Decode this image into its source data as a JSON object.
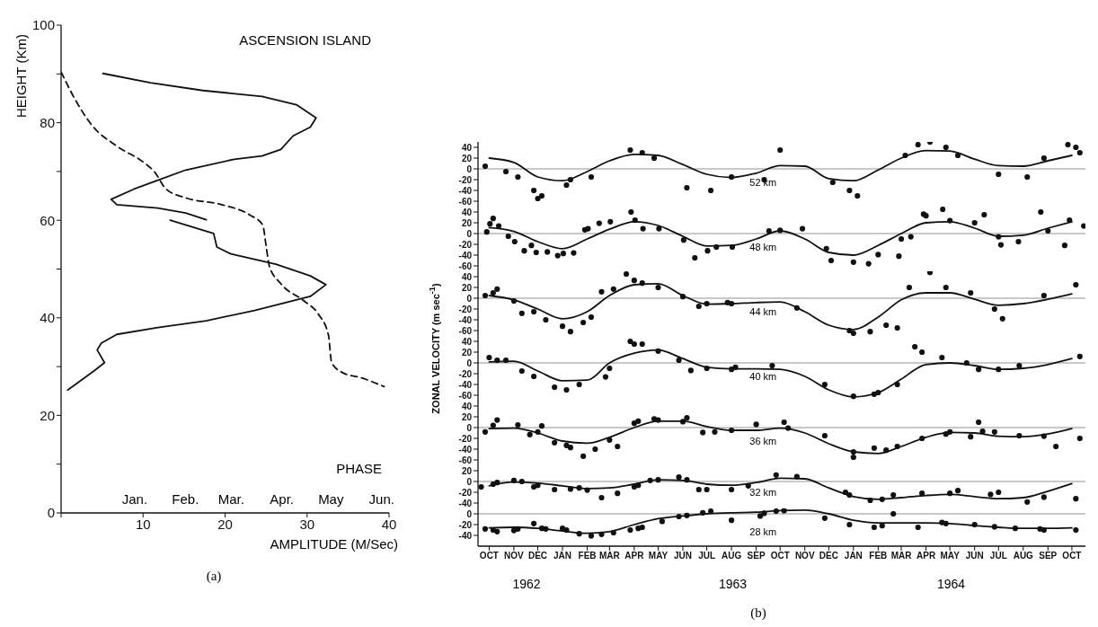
{
  "chart_data": [
    {
      "type": "line",
      "title": "ASCENSION ISLAND",
      "xlabel": "AMPLITUDE (M/Sec)",
      "ylabel": "HEIGHT (Km)",
      "x2label": "PHASE",
      "xlim": [
        0,
        40
      ],
      "xticks": [
        {
          "value": 0,
          "label": null
        },
        10,
        20,
        30,
        40
      ],
      "x2lim": [
        "1962-12-01",
        "1963-06-19"
      ],
      "x2ticks": [
        {
          "value": "1963-01-15",
          "label": "Jan."
        },
        {
          "value": "1963-02-15",
          "label": "Feb."
        },
        {
          "value": "1963-03-15",
          "label": "Mar."
        },
        {
          "value": "1963-04-15",
          "label": "Apr."
        },
        {
          "value": "1963-05-15",
          "label": "May"
        },
        {
          "value": "1963-06-15",
          "label": "Jun."
        }
      ],
      "ylim": [
        0,
        100
      ],
      "yticks": [
        0,
        {
          "value": 10,
          "label": null
        },
        20,
        {
          "value": 30,
          "label": null
        },
        40,
        {
          "value": 50,
          "label": null
        },
        60,
        {
          "value": 70,
          "label": null
        },
        80,
        {
          "value": 90,
          "label": null
        },
        100
      ],
      "series": [
        {
          "color": "#111111",
          "x": [
            5.1,
            10.9,
            17.3,
            24.5,
            28.7,
            31.1,
            30.4,
            28.3,
            26.8,
            24.5,
            21.1,
            15.2,
            11.8,
            8.9,
            6.1,
            6.8,
            11.8,
            15.2,
            17.7,
            null,
            13.3,
            18.6,
            19,
            20.7,
            26.2,
            30.4,
            32.3,
            30.4,
            23.6,
            17.7,
            11.8,
            6.8,
            4.9,
            4.4,
            5.3,
            4,
            0.8
          ],
          "values": [
            90.1,
            88.2,
            86.6,
            85.4,
            83.7,
            81,
            79.1,
            77.3,
            74.5,
            73.2,
            72.5,
            70.3,
            68.2,
            66.4,
            64.3,
            63.2,
            62.5,
            61.5,
            60.1,
            null,
            60,
            57.3,
            54.5,
            53.1,
            51,
            48.6,
            46.8,
            44.4,
            41.5,
            39.4,
            38,
            36.6,
            34.8,
            33.4,
            30.8,
            29.1,
            25.2
          ]
        },
        {
          "color": "#111111",
          "axis": "x2",
          "line_style": "dashed",
          "x": [
            "1962-12-01",
            "1962-12-09",
            "1962-12-20",
            "1963-01-04",
            "1963-01-21",
            "1963-01-27",
            "1963-02-03",
            "1963-02-15",
            "1963-03-09",
            "1963-03-26",
            "1963-04-03",
            "1963-04-05",
            "1963-04-07",
            "1963-04-14",
            "1963-04-28",
            "1963-05-07",
            "1963-05-13",
            "1963-05-15",
            "1963-05-22",
            "1963-06-02",
            "1963-06-16"
          ],
          "values": [
            90.4,
            85.1,
            79.4,
            75.2,
            71.7,
            69.9,
            66.4,
            64.6,
            63.2,
            61.1,
            59,
            54.8,
            50.6,
            47,
            43.5,
            40.7,
            36.5,
            30.8,
            28.7,
            27.7,
            25.9
          ]
        }
      ],
      "annotations": [
        "(a)"
      ]
    },
    {
      "type": "line",
      "xlim": [
        "1962-10-01",
        "1964-11-01"
      ],
      "ylim": [
        -70,
        50
      ],
      "yticks": [
        40,
        20,
        0,
        -20,
        -40,
        -60
      ],
      "tick_labels": "y",
      "ref_lines": [
        {
          "axis": "y",
          "value": 0,
          "color": "#777777"
        }
      ],
      "x": [
        "1962-10-15",
        "1962-11-15",
        "1962-12-15",
        "1963-01-15",
        "1963-02-15",
        "1963-03-15",
        "1963-04-15",
        "1963-05-15",
        "1963-06-15",
        "1963-07-15",
        "1963-08-15",
        "1963-09-15",
        "1963-10-15",
        "1963-11-15",
        "1963-12-15",
        "1964-01-15",
        "1964-02-15",
        "1964-03-15",
        "1964-04-15",
        "1964-05-15",
        "1964-06-15",
        "1964-07-15",
        "1964-08-15",
        "1964-09-15",
        "1964-10-15"
      ],
      "series": [
        {
          "color": "#111111",
          "values": [
            20,
            12,
            -15,
            -22,
            -5,
            15,
            27,
            25,
            8,
            -10,
            -16,
            -8,
            6,
            5,
            -18,
            -22,
            -2,
            20,
            34,
            33,
            18,
            6,
            5,
            15,
            25
          ]
        },
        {
          "type": "scatter",
          "marker": "circle",
          "color": "#111111",
          "x": [
            "1962-10-10",
            "1962-11-05",
            "1962-11-20",
            "1962-12-15",
            "1962-12-20",
            "1963-01-20",
            "1963-02-20",
            "1963-04-10",
            "1963-05-10",
            "1963-07-20",
            "1963-09-25",
            "1963-10-15",
            "1963-12-20",
            "1964-01-20",
            "1964-03-20",
            "1964-04-20",
            "1964-05-10",
            "1964-07-15",
            "1964-08-20",
            "1964-10-10",
            "1964-10-25"
          ],
          "values": [
            5,
            -5,
            -15,
            -55,
            -50,
            -30,
            -15,
            35,
            20,
            -40,
            -20,
            35,
            -25,
            -50,
            25,
            50,
            40,
            -10,
            -15,
            45,
            30
          ]
        },
        {
          "type": "scatter",
          "marker": "circle",
          "color": "#111111",
          "x": [
            "1962-12-10",
            "1963-01-25",
            "1963-04-25",
            "1963-06-20",
            "1963-08-15",
            "1964-01-10",
            "1964-04-05",
            "1964-05-25",
            "1964-09-10",
            "1964-10-20"
          ],
          "values": [
            -40,
            -20,
            30,
            -35,
            -15,
            -40,
            45,
            25,
            20,
            40
          ]
        }
      ],
      "annotations": [
        "52 km"
      ]
    },
    {
      "type": "line",
      "xlim": [
        "1962-10-01",
        "1964-11-01"
      ],
      "ylim": [
        -70,
        50
      ],
      "yticks": [
        40,
        20,
        0,
        -20,
        -40,
        -60
      ],
      "tick_labels": "y",
      "ref_lines": [
        {
          "axis": "y",
          "value": 0,
          "color": "#777777"
        }
      ],
      "x": [
        "1962-10-15",
        "1962-11-15",
        "1962-12-15",
        "1963-01-15",
        "1963-02-15",
        "1963-03-15",
        "1963-04-15",
        "1963-05-15",
        "1963-06-15",
        "1963-07-15",
        "1963-08-15",
        "1963-09-15",
        "1963-10-15",
        "1963-11-15",
        "1963-12-15",
        "1964-01-15",
        "1964-02-15",
        "1964-03-15",
        "1964-04-15",
        "1964-05-15",
        "1964-06-15",
        "1964-07-15",
        "1964-08-15",
        "1964-09-15",
        "1964-10-15"
      ],
      "series": [
        {
          "color": "#111111",
          "values": [
            11,
            4,
            -15,
            -28,
            -10,
            8,
            22,
            15,
            -5,
            -23,
            -22,
            -10,
            5,
            -10,
            -35,
            -40,
            -22,
            0,
            20,
            22,
            10,
            -5,
            -3,
            10,
            22
          ]
        },
        {
          "type": "scatter",
          "marker": "circle",
          "color": "#111111",
          "x": [
            "1962-10-12",
            "1962-10-20",
            "1962-10-27",
            "1962-11-08",
            "1962-11-28",
            "1962-12-07",
            "1962-12-13",
            "1962-12-27",
            "1963-01-09",
            "1963-01-29",
            "1963-02-12",
            "1963-03-02",
            "1963-04-11",
            "1963-04-26",
            "1963-06-30",
            "1963-07-27",
            "1963-10-01",
            "1963-11-12",
            "1963-12-12",
            "1963-12-18",
            "1964-02-03",
            "1964-03-12",
            "1964-03-27",
            "1964-04-12",
            "1964-05-06",
            "1964-06-27",
            "1964-07-18",
            "1964-08-09",
            "1964-09-06",
            "1964-10-06",
            "1964-10-30"
          ],
          "values": [
            3,
            28,
            14,
            -5,
            -32,
            -22,
            -35,
            -34,
            -41,
            -36,
            7,
            19,
            40,
            9,
            -45,
            -25,
            5,
            9,
            -28,
            -50,
            -56,
            -42,
            -6,
            36,
            45,
            35,
            -21,
            -15,
            40,
            -22,
            14
          ]
        },
        {
          "type": "scatter",
          "marker": "circle",
          "color": "#111111",
          "x": [
            "1962-10-16",
            "1962-11-16",
            "1963-01-16",
            "1963-02-16",
            "1963-03-16",
            "1963-04-16",
            "1963-05-16",
            "1963-06-16",
            "1963-07-16",
            "1963-08-16",
            "1963-10-15",
            "1964-01-15",
            "1964-02-15",
            "1964-03-15",
            "1964-04-15",
            "1964-05-15",
            "1964-06-15",
            "1964-07-15",
            "1964-09-15",
            "1964-10-12"
          ],
          "values": [
            18,
            -15,
            -37,
            9,
            22,
            25,
            9,
            -12,
            -32,
            -25,
            6,
            -53,
            -39,
            -10,
            33,
            24,
            20,
            -6,
            5,
            25
          ]
        }
      ],
      "annotations": [
        "48 km"
      ]
    },
    {
      "type": "line",
      "xlim": [
        "1962-10-01",
        "1964-11-01"
      ],
      "ylim": [
        -70,
        50
      ],
      "yticks": [
        40,
        20,
        0,
        -20,
        -40,
        -60
      ],
      "tick_labels": "y",
      "ref_lines": [
        {
          "axis": "y",
          "value": 0,
          "color": "#777777"
        }
      ],
      "x": [
        "1962-10-15",
        "1962-11-15",
        "1962-12-15",
        "1963-01-15",
        "1963-02-15",
        "1963-03-15",
        "1963-04-15",
        "1963-05-15",
        "1963-06-15",
        "1963-07-15",
        "1963-08-15",
        "1963-09-15",
        "1963-10-15",
        "1963-11-15",
        "1963-12-15",
        "1964-01-15",
        "1964-02-15",
        "1964-03-15",
        "1964-04-15",
        "1964-05-15",
        "1964-06-15",
        "1964-07-15",
        "1964-08-15",
        "1964-09-15",
        "1964-10-15"
      ],
      "series": [
        {
          "color": "#111111",
          "values": [
            5,
            -3,
            -20,
            -38,
            -25,
            5,
            25,
            27,
            5,
            -11,
            -10,
            -8,
            -7,
            -25,
            -50,
            -58,
            -35,
            -3,
            10,
            10,
            -2,
            -13,
            -10,
            -2,
            8
          ]
        },
        {
          "type": "scatter",
          "marker": "circle",
          "color": "#111111",
          "x": [
            "1962-10-10",
            "1962-10-25",
            "1962-11-15",
            "1962-12-10",
            "1962-12-25",
            "1963-01-15",
            "1963-02-10",
            "1963-03-05",
            "1963-04-05",
            "1963-04-25",
            "1963-07-05",
            "1963-08-10",
            "1963-11-05",
            "1964-01-15",
            "1964-02-05",
            "1964-03-10",
            "1964-03-25",
            "1964-04-20",
            "1964-06-10",
            "1964-07-20",
            "1964-09-10",
            "1964-10-20"
          ],
          "values": [
            5,
            17,
            -5,
            -25,
            -40,
            -52,
            -45,
            12,
            45,
            28,
            -15,
            -8,
            -18,
            -65,
            -62,
            -55,
            20,
            48,
            10,
            -38,
            5,
            25
          ]
        },
        {
          "type": "scatter",
          "marker": "circle",
          "color": "#111111",
          "x": [
            "1962-10-20",
            "1962-11-25",
            "1963-01-25",
            "1963-02-20",
            "1963-03-20",
            "1963-04-15",
            "1963-05-15",
            "1963-06-15",
            "1963-07-15",
            "1963-08-15",
            "1964-01-10",
            "1964-02-25",
            "1964-05-10",
            "1964-07-10"
          ],
          "values": [
            10,
            -28,
            -62,
            -35,
            17,
            33,
            20,
            3,
            -10,
            -10,
            -60,
            -50,
            20,
            -20
          ]
        }
      ],
      "annotations": [
        "44 km"
      ]
    },
    {
      "type": "line",
      "ylabel": "ZONAL VELOCITY (m sec$^{-1}$)",
      "xlim": [
        "1962-10-01",
        "1964-11-01"
      ],
      "ylim": [
        -70,
        50
      ],
      "yticks": [
        40,
        20,
        0,
        -20,
        -40,
        -60
      ],
      "tick_labels": "y",
      "ref_lines": [
        {
          "axis": "y",
          "value": 0,
          "color": "#777777"
        }
      ],
      "x": [
        "1962-10-15",
        "1962-11-15",
        "1962-12-15",
        "1963-01-15",
        "1963-02-15",
        "1963-03-15",
        "1963-04-15",
        "1963-05-15",
        "1963-06-15",
        "1963-07-15",
        "1963-08-15",
        "1963-09-15",
        "1963-10-15",
        "1963-11-15",
        "1963-12-15",
        "1964-01-15",
        "1964-02-15",
        "1964-03-15",
        "1964-04-15",
        "1964-05-15",
        "1964-06-15",
        "1964-07-15",
        "1964-08-15",
        "1964-09-15",
        "1964-10-15"
      ],
      "series": [
        {
          "color": "#111111",
          "values": [
            2,
            3,
            -15,
            -33,
            -32,
            0,
            18,
            24,
            8,
            -8,
            -11,
            -11,
            -12,
            -25,
            -50,
            -63,
            -55,
            -30,
            -3,
            0,
            -5,
            -12,
            -10,
            -3,
            8
          ]
        },
        {
          "type": "scatter",
          "marker": "circle",
          "color": "#111111",
          "x": [
            "1962-10-15",
            "1962-11-05",
            "1962-11-25",
            "1962-12-10",
            "1963-01-05",
            "1963-02-05",
            "1963-03-10",
            "1963-04-10",
            "1963-04-25",
            "1963-06-25",
            "1963-08-20",
            "1963-10-05",
            "1963-12-10",
            "1964-01-15",
            "1964-02-10",
            "1964-03-10",
            "1964-04-10",
            "1964-05-05",
            "1964-06-20",
            "1964-08-10",
            "1964-10-25"
          ],
          "values": [
            10,
            5,
            -15,
            -25,
            -45,
            -40,
            -26,
            40,
            35,
            -14,
            -8,
            -5,
            -40,
            -62,
            -58,
            -40,
            20,
            10,
            -12,
            -5,
            12
          ]
        },
        {
          "type": "scatter",
          "marker": "circle",
          "color": "#111111",
          "x": [
            "1962-10-25",
            "1963-01-20",
            "1963-03-15",
            "1963-04-15",
            "1963-05-15",
            "1963-06-10",
            "1963-07-15",
            "1963-08-15",
            "1964-02-15",
            "1964-04-01",
            "1964-06-05",
            "1964-07-15"
          ],
          "values": [
            5,
            -50,
            -10,
            35,
            22,
            5,
            -10,
            -12,
            -55,
            30,
            0,
            -12
          ]
        }
      ],
      "annotations": [
        "40 km"
      ]
    },
    {
      "type": "line",
      "xlim": [
        "1962-10-01",
        "1964-11-01"
      ],
      "ylim": [
        -70,
        50
      ],
      "yticks": [
        40,
        20,
        0,
        -20,
        -40,
        -60
      ],
      "tick_labels": "y",
      "ref_lines": [
        {
          "axis": "y",
          "value": 0,
          "color": "#777777"
        }
      ],
      "x": [
        "1962-10-15",
        "1962-11-15",
        "1962-12-15",
        "1963-01-15",
        "1963-02-15",
        "1963-03-15",
        "1963-04-15",
        "1963-05-15",
        "1963-06-15",
        "1963-07-15",
        "1963-08-15",
        "1963-09-15",
        "1963-10-15",
        "1963-11-15",
        "1963-12-15",
        "1964-01-15",
        "1964-02-15",
        "1964-03-15",
        "1964-04-15",
        "1964-05-15",
        "1964-06-15",
        "1964-07-15",
        "1964-08-15",
        "1964-09-15",
        "1964-10-15"
      ],
      "series": [
        {
          "color": "#111111",
          "values": [
            -2,
            -1,
            -10,
            -25,
            -29,
            -18,
            0,
            12,
            12,
            2,
            -5,
            -5,
            -1,
            -10,
            -30,
            -45,
            -48,
            -35,
            -18,
            -9,
            -10,
            -16,
            -17,
            -12,
            -2
          ]
        },
        {
          "type": "scatter",
          "marker": "circle",
          "color": "#111111",
          "x": [
            "1962-10-10",
            "1962-10-25",
            "1962-11-20",
            "1962-12-05",
            "1962-12-20",
            "1963-01-05",
            "1963-01-20",
            "1963-02-10",
            "1963-03-25",
            "1963-04-20",
            "1963-05-10",
            "1963-06-20",
            "1963-07-10",
            "1963-09-15",
            "1963-10-20",
            "1963-12-10",
            "1964-01-15",
            "1964-02-10",
            "1964-03-10",
            "1964-04-10",
            "1964-05-10",
            "1964-06-10",
            "1964-06-20",
            "1964-08-10",
            "1964-09-25",
            "1964-10-25"
          ],
          "values": [
            -8,
            14,
            5,
            -13,
            3,
            -28,
            -33,
            -53,
            -35,
            12,
            16,
            18,
            -9,
            6,
            10,
            -15,
            -55,
            -38,
            -35,
            -20,
            -12,
            -17,
            10,
            -15,
            -35,
            -20
          ]
        },
        {
          "type": "scatter",
          "marker": "circle",
          "color": "#111111",
          "x": [
            "1962-10-20",
            "1962-12-15",
            "1963-01-25",
            "1963-02-25",
            "1963-03-15",
            "1963-04-15",
            "1963-05-15",
            "1963-06-15",
            "1963-07-25",
            "1963-08-15",
            "1963-10-25",
            "1964-01-15",
            "1964-02-25",
            "1964-05-15",
            "1964-06-25",
            "1964-07-10",
            "1964-09-10"
          ],
          "values": [
            4,
            -8,
            -37,
            -40,
            -23,
            8,
            14,
            11,
            -8,
            -5,
            -1,
            -45,
            -42,
            -8,
            -7,
            -8,
            -16
          ]
        }
      ],
      "annotations": [
        "36 km"
      ]
    },
    {
      "type": "line",
      "xlim": [
        "1962-10-01",
        "1964-11-01"
      ],
      "ylim": [
        -50,
        30
      ],
      "yticks": [
        20,
        0,
        -20,
        -40
      ],
      "tick_labels": "y",
      "ref_lines": [
        {
          "axis": "y",
          "value": 0,
          "color": "#777777"
        }
      ],
      "x": [
        "1962-10-15",
        "1962-11-15",
        "1962-12-15",
        "1963-01-15",
        "1963-02-15",
        "1963-03-15",
        "1963-04-15",
        "1963-05-15",
        "1963-06-15",
        "1963-07-15",
        "1963-08-15",
        "1963-09-15",
        "1963-10-15",
        "1963-11-15",
        "1963-12-15",
        "1964-01-15",
        "1964-02-15",
        "1964-03-15",
        "1964-04-15",
        "1964-05-15",
        "1964-06-15",
        "1964-07-15",
        "1964-08-15",
        "1964-09-15",
        "1964-10-15"
      ],
      "series": [
        {
          "color": "#111111",
          "values": [
            -8,
            -1,
            -3,
            -8,
            -13,
            -12,
            -5,
            3,
            2,
            -5,
            -7,
            -2,
            6,
            5,
            -12,
            -28,
            -33,
            -30,
            -26,
            -24,
            -28,
            -32,
            -30,
            -18,
            -4
          ]
        },
        {
          "type": "scatter",
          "marker": "circle",
          "color": "#111111",
          "x": [
            "1962-10-05",
            "1962-10-25",
            "1962-11-15",
            "1962-11-25",
            "1962-12-10",
            "1963-01-05",
            "1963-02-05",
            "1963-03-05",
            "1963-04-15",
            "1963-05-05",
            "1963-06-10",
            "1963-07-05",
            "1963-09-05",
            "1963-10-10",
            "1964-01-05",
            "1964-02-05",
            "1964-03-05",
            "1964-04-10",
            "1964-05-25",
            "1964-07-15",
            "1964-08-20",
            "1964-10-20"
          ],
          "values": [
            -10,
            -2,
            2,
            0,
            -10,
            -15,
            -12,
            -30,
            -10,
            2,
            8,
            -15,
            -8,
            12,
            -20,
            -35,
            -25,
            -22,
            -17,
            -20,
            -38,
            -32
          ]
        },
        {
          "type": "scatter",
          "marker": "circle",
          "color": "#111111",
          "x": [
            "1962-10-20",
            "1962-12-15",
            "1963-01-25",
            "1963-02-15",
            "1963-03-25",
            "1963-04-20",
            "1963-05-15",
            "1963-06-20",
            "1963-07-15",
            "1963-08-15",
            "1963-11-05",
            "1964-01-10",
            "1964-02-20",
            "1964-05-15",
            "1964-07-05",
            "1964-09-10"
          ],
          "values": [
            -5,
            -7,
            -14,
            -16,
            -22,
            -7,
            3,
            3,
            -15,
            -15,
            9,
            -25,
            -33,
            -22,
            -24,
            -29
          ]
        }
      ],
      "annotations": [
        "32 km"
      ]
    },
    {
      "type": "line",
      "xlim": [
        "1962-10-01",
        "1964-11-01"
      ],
      "ylim": [
        -60,
        10
      ],
      "yticks": [
        0,
        -20,
        -40
      ],
      "xticks": [
        {
          "value": "1962-10-15",
          "label": "OCT"
        },
        {
          "value": "1962-11-15",
          "label": "NOV"
        },
        {
          "value": "1962-12-15",
          "label": "DEC"
        },
        {
          "value": "1963-01-15",
          "label": "JAN"
        },
        {
          "value": "1963-02-15",
          "label": "FEB"
        },
        {
          "value": "1963-03-15",
          "label": "MAR"
        },
        {
          "value": "1963-04-15",
          "label": "APR"
        },
        {
          "value": "1963-05-15",
          "label": "MAY"
        },
        {
          "value": "1963-06-15",
          "label": "JUN"
        },
        {
          "value": "1963-07-15",
          "label": "JUL"
        },
        {
          "value": "1963-08-15",
          "label": "AUG"
        },
        {
          "value": "1963-09-15",
          "label": "SEP"
        },
        {
          "value": "1963-10-15",
          "label": "OCT"
        },
        {
          "value": "1963-11-15",
          "label": "NOV"
        },
        {
          "value": "1963-12-15",
          "label": "DEC"
        },
        {
          "value": "1964-01-15",
          "label": "JAN"
        },
        {
          "value": "1964-02-15",
          "label": "FEB"
        },
        {
          "value": "1964-03-15",
          "label": "MAR"
        },
        {
          "value": "1964-04-15",
          "label": "APR"
        },
        {
          "value": "1964-05-15",
          "label": "MAY"
        },
        {
          "value": "1964-06-15",
          "label": "JUN"
        },
        {
          "value": "1964-07-15",
          "label": "JUL"
        },
        {
          "value": "1964-08-15",
          "label": "AUG"
        },
        {
          "value": "1964-09-15",
          "label": "SEP"
        },
        {
          "value": "1964-10-15",
          "label": "OCT"
        }
      ],
      "ref_lines": [
        {
          "axis": "y",
          "value": 0,
          "color": "#777777"
        }
      ],
      "x": [
        "1962-10-15",
        "1962-11-15",
        "1962-12-15",
        "1963-01-15",
        "1963-02-15",
        "1963-03-15",
        "1963-04-15",
        "1963-05-15",
        "1963-06-15",
        "1963-07-15",
        "1963-08-15",
        "1963-09-15",
        "1963-10-15",
        "1963-11-15",
        "1963-12-15",
        "1964-01-15",
        "1964-02-15",
        "1964-03-15",
        "1964-04-15",
        "1964-05-15",
        "1964-06-15",
        "1964-07-15",
        "1964-08-15",
        "1964-09-15",
        "1964-10-15"
      ],
      "series": [
        {
          "color": "#111111",
          "values": [
            -26,
            -25,
            -27,
            -32,
            -36,
            -33,
            -20,
            -9,
            -4,
            0,
            2,
            3,
            6,
            7,
            0,
            -12,
            -17,
            -17,
            -17,
            -18,
            -22,
            -25,
            -27,
            -27,
            -26
          ]
        },
        {
          "type": "scatter",
          "marker": "circle",
          "color": "#111111",
          "x": [
            "1962-10-10",
            "1962-10-25",
            "1962-11-15",
            "1962-12-10",
            "1962-12-25",
            "1963-01-15",
            "1963-02-05",
            "1963-03-05",
            "1963-04-10",
            "1963-04-25",
            "1963-06-10",
            "1963-07-20",
            "1963-09-20",
            "1963-10-10",
            "1963-12-10",
            "1964-01-10",
            "1964-02-10",
            "1964-03-05",
            "1964-04-05",
            "1964-05-10",
            "1964-06-15",
            "1964-08-05",
            "1964-09-10",
            "1964-10-20"
          ],
          "values": [
            -28,
            -33,
            -31,
            -18,
            -28,
            -27,
            -37,
            -38,
            -30,
            -25,
            -5,
            5,
            -4,
            5,
            -8,
            -20,
            -25,
            0,
            -25,
            -18,
            -20,
            -27,
            -30,
            -30
          ]
        },
        {
          "type": "scatter",
          "marker": "circle",
          "color": "#111111",
          "x": [
            "1962-10-20",
            "1962-11-20",
            "1962-12-20",
            "1963-01-20",
            "1963-02-20",
            "1963-03-20",
            "1963-04-20",
            "1963-05-20",
            "1963-06-20",
            "1963-07-10",
            "1963-08-15",
            "1963-09-25",
            "1963-10-20",
            "1964-02-20",
            "1964-05-05",
            "1964-07-10",
            "1964-09-05"
          ],
          "values": [
            -30,
            -28,
            -27,
            -30,
            -41,
            -35,
            -27,
            -14,
            -3,
            2,
            -12,
            1,
            6,
            -22,
            -16,
            -24,
            -28
          ]
        }
      ],
      "annotations": [
        "28 km",
        "1962",
        "1963",
        "1964",
        "(b)"
      ]
    }
  ]
}
